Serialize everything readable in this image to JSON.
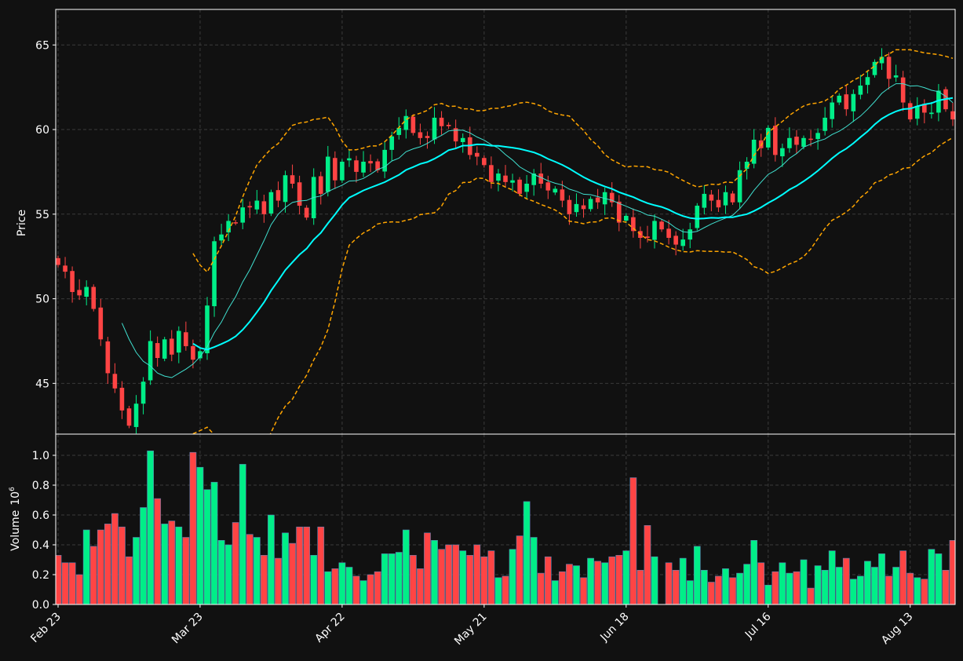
{
  "chart_data": [
    {
      "type": "candlestick",
      "ylabel": "Price",
      "ylim": [
        42.0,
        67.1
      ],
      "yticks": [
        45,
        50,
        55,
        60,
        65
      ],
      "x_start": 0,
      "x_end": 126,
      "xticks": [
        {
          "i": 0,
          "label": "Feb 23"
        },
        {
          "i": 20,
          "label": "Mar 23"
        },
        {
          "i": 40,
          "label": "Apr 22"
        },
        {
          "i": 60,
          "label": "May 21"
        },
        {
          "i": 80,
          "label": "Jun 18"
        },
        {
          "i": 100,
          "label": "Jul 16"
        },
        {
          "i": 120,
          "label": "Aug 13"
        }
      ],
      "grid": true,
      "overlays": [
        "moving-average-short",
        "moving-average-long",
        "upper-band",
        "lower-band"
      ],
      "closes": [
        52.0,
        51.6,
        50.4,
        50.2,
        50.7,
        49.4,
        47.6,
        45.6,
        44.7,
        43.4,
        42.5,
        43.8,
        45.1,
        47.5,
        46.5,
        47.6,
        46.7,
        48.1,
        47.2,
        46.4,
        46.9,
        49.6,
        53.4,
        53.8,
        54.6,
        54.5,
        55.4,
        55.4,
        55.8,
        55.0,
        56.3,
        55.8,
        57.3,
        56.8,
        55.5,
        54.8,
        57.2,
        56.2,
        58.4,
        57.0,
        58.1,
        58.3,
        57.5,
        58.1,
        58.0,
        57.6,
        58.8,
        59.6,
        60.1,
        60.8,
        59.8,
        59.5,
        59.5,
        60.7,
        60.2,
        60.2,
        59.3,
        59.5,
        58.5,
        58.4,
        57.9,
        56.9,
        57.4,
        56.9,
        57.0,
        56.2,
        56.8,
        57.4,
        56.8,
        56.4,
        56.5,
        55.8,
        55.0,
        55.6,
        55.3,
        55.9,
        55.7,
        56.3,
        55.7,
        54.5,
        54.9,
        54.0,
        53.6,
        53.6,
        54.6,
        54.1,
        53.6,
        53.2,
        53.5,
        54.1,
        55.5,
        56.2,
        55.8,
        55.4,
        56.3,
        55.7,
        57.6,
        58.1,
        59.4,
        58.9,
        60.1,
        58.5,
        58.9,
        59.5,
        59.1,
        59.5,
        59.4,
        59.8,
        60.7,
        61.6,
        62.0,
        61.2,
        62.1,
        62.6,
        63.1,
        64.0,
        64.3,
        63.0,
        63.2,
        61.6,
        60.6,
        61.4,
        61.0,
        61.0,
        62.3,
        61.2,
        60.6
      ],
      "bar_colors": {
        "up": "#00ee88",
        "down": "#ff4444"
      },
      "line_colors": {
        "ma_short": "#40e0d0",
        "ma_long": "#00ffff",
        "bands": "#ffa500"
      }
    },
    {
      "type": "bar",
      "ylabel": "Volume",
      "ylabel_exponent": "10",
      "ylabel_power": "6",
      "ylim": [
        0,
        1.1
      ],
      "yticks": [
        {
          "v": 0.0,
          "label": "0.0"
        },
        {
          "v": 0.2,
          "label": "0.2"
        },
        {
          "v": 0.4,
          "label": "0.4"
        },
        {
          "v": 0.6,
          "label": "0.6"
        },
        {
          "v": 0.8,
          "label": "0.8"
        },
        {
          "v": 1.0,
          "label": "1.0"
        }
      ],
      "values": [
        0.33,
        0.28,
        0.28,
        0.2,
        0.5,
        0.39,
        0.5,
        0.54,
        0.61,
        0.52,
        0.32,
        0.45,
        0.65,
        1.03,
        0.71,
        0.54,
        0.56,
        0.52,
        0.45,
        1.02,
        0.92,
        0.77,
        0.82,
        0.43,
        0.4,
        0.55,
        0.94,
        0.47,
        0.45,
        0.33,
        0.6,
        0.31,
        0.48,
        0.41,
        0.52,
        0.52,
        0.33,
        0.52,
        0.22,
        0.24,
        0.28,
        0.25,
        0.19,
        0.16,
        0.2,
        0.22,
        0.34,
        0.34,
        0.35,
        0.5,
        0.33,
        0.24,
        0.48,
        0.43,
        0.37,
        0.4,
        0.4,
        0.36,
        0.33,
        0.4,
        0.32,
        0.36,
        0.18,
        0.19,
        0.37,
        0.46,
        0.69,
        0.45,
        0.21,
        0.32,
        0.16,
        0.22,
        0.27,
        0.26,
        0.18,
        0.31,
        0.29,
        0.28,
        0.32,
        0.33,
        0.36,
        0.85,
        0.23,
        0.53,
        0.32,
        0.0,
        0.28,
        0.23,
        0.31,
        0.16,
        0.39,
        0.23,
        0.15,
        0.19,
        0.24,
        0.18,
        0.21,
        0.27,
        0.43,
        0.28,
        0.13,
        0.22,
        0.28,
        0.21,
        0.22,
        0.3,
        0.11,
        0.26,
        0.23,
        0.36,
        0.25,
        0.31,
        0.17,
        0.19,
        0.29,
        0.25,
        0.34,
        0.19,
        0.25,
        0.36,
        0.21,
        0.18,
        0.17,
        0.37,
        0.34,
        0.23,
        0.43
      ]
    }
  ]
}
